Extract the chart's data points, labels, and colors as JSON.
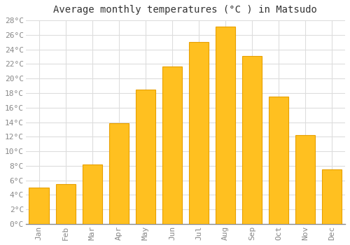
{
  "title": "Average monthly temperatures (°C ) in Matsudo",
  "months": [
    "Jan",
    "Feb",
    "Mar",
    "Apr",
    "May",
    "Jun",
    "Jul",
    "Aug",
    "Sep",
    "Oct",
    "Nov",
    "Dec"
  ],
  "temperatures": [
    5.0,
    5.5,
    8.2,
    13.9,
    18.5,
    21.7,
    25.0,
    27.1,
    23.1,
    17.5,
    12.2,
    7.5
  ],
  "bar_color": "#FFC020",
  "bar_edge_color": "#E8A000",
  "background_color": "#ffffff",
  "grid_color": "#dddddd",
  "ylim": [
    0,
    28
  ],
  "ytick_step": 2,
  "title_fontsize": 10,
  "tick_fontsize": 8,
  "font_family": "monospace"
}
